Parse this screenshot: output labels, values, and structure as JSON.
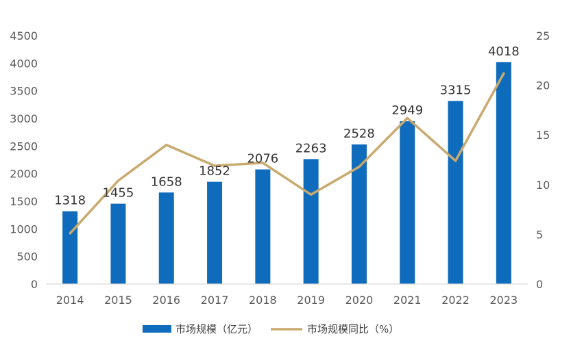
{
  "chart_data": {
    "type": "bar",
    "categories": [
      "2014",
      "2015",
      "2016",
      "2017",
      "2018",
      "2019",
      "2020",
      "2021",
      "2022",
      "2023"
    ],
    "series": [
      {
        "name": "市场规模（亿元）",
        "type": "bar",
        "axis": "left",
        "color": "#0f6cbd",
        "values": [
          1318,
          1455,
          1658,
          1852,
          2076,
          2263,
          2528,
          2949,
          3315,
          4018
        ]
      },
      {
        "name": "市场规模同比（%）",
        "type": "line",
        "axis": "right",
        "color": "#c9a96e",
        "values": [
          5.1,
          10.4,
          14.0,
          11.9,
          12.2,
          9.0,
          11.8,
          16.7,
          12.4,
          21.2
        ]
      }
    ],
    "y_left": {
      "min": 0,
      "max": 4500,
      "ticks": [
        "0",
        "500",
        "1000",
        "1500",
        "2000",
        "2500",
        "3000",
        "3500",
        "4000",
        "4500"
      ]
    },
    "y_right": {
      "min": 0,
      "max": 25,
      "ticks": [
        "0",
        "5",
        "10",
        "15",
        "20",
        "25"
      ]
    },
    "bar_labels": [
      "1318",
      "1455",
      "1658",
      "1852",
      "2076",
      "2263",
      "2528",
      "2949",
      "3315",
      "4018"
    ],
    "legend": {
      "position": "bottom"
    },
    "grid": false
  }
}
